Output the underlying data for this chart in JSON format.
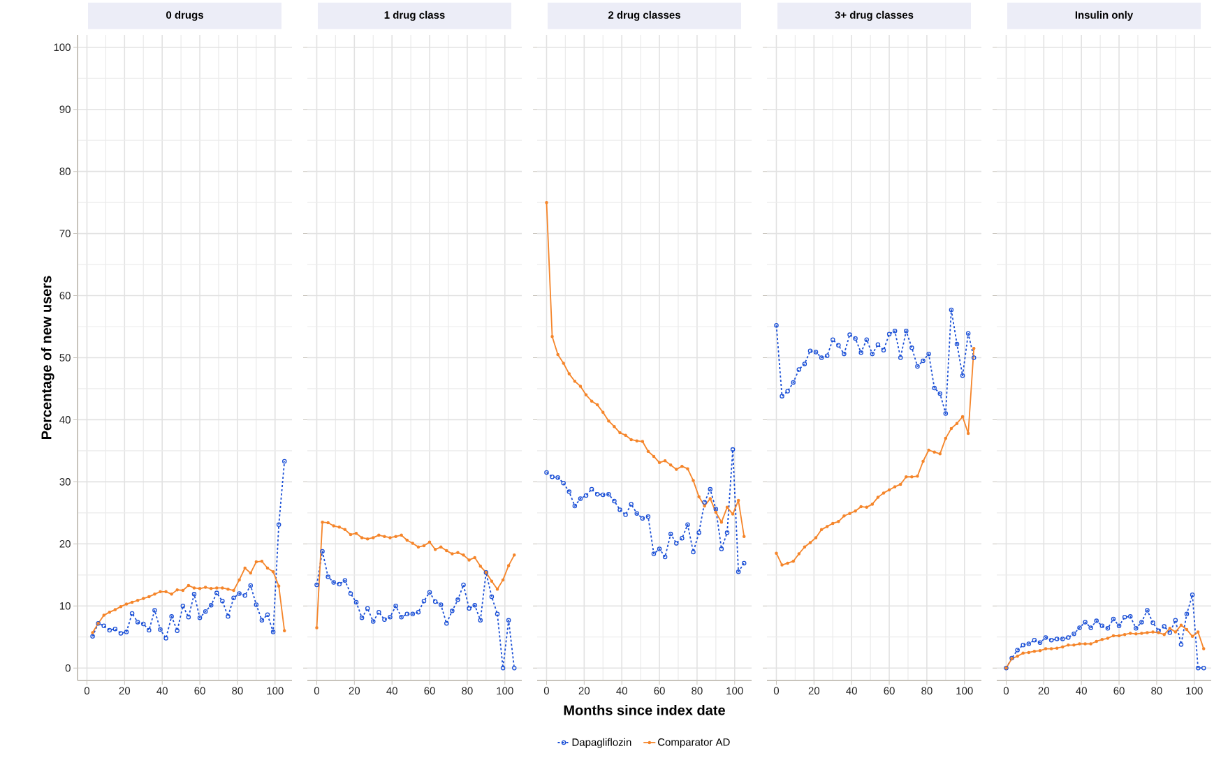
{
  "chart_data": [
    {
      "type": "line",
      "title": "0 drugs",
      "ylabel": "Percentage of new users",
      "x": [
        3,
        6,
        9,
        12,
        15,
        18,
        21,
        24,
        27,
        30,
        33,
        36,
        39,
        42,
        45,
        48,
        51,
        54,
        57,
        60,
        63,
        66,
        69,
        72,
        75,
        78,
        81,
        84,
        87,
        90,
        93,
        96,
        99,
        102,
        105
      ],
      "xlim": [
        -5,
        109
      ],
      "ylim": [
        -2,
        102
      ],
      "xticks": [
        0,
        20,
        40,
        60,
        80,
        100
      ],
      "yticks": [
        0,
        10,
        20,
        30,
        40,
        50,
        60,
        70,
        80,
        90,
        100
      ],
      "grid": true,
      "series": [
        {
          "color": "#1a4fd6",
          "marker": "circle",
          "line_style": "dashed",
          "values": [
            5.1,
            7.2,
            6.8,
            6.1,
            6.3,
            5.6,
            5.8,
            8.8,
            7.4,
            7.1,
            6.1,
            9.3,
            6.2,
            4.8,
            8.3,
            6.0,
            10.0,
            8.2,
            11.9,
            8.1,
            9.1,
            10.1,
            12.1,
            10.8,
            8.3,
            11.3,
            12.0,
            11.7,
            13.3,
            10.2,
            7.7,
            8.6,
            5.8,
            23.1,
            33.3
          ]
        },
        {
          "color": "#f5852a",
          "marker": "circle",
          "line_style": "solid",
          "values": [
            5.7,
            7.2,
            8.5,
            9.0,
            9.4,
            9.9,
            10.3,
            10.6,
            10.9,
            11.2,
            11.5,
            11.9,
            12.3,
            12.3,
            11.9,
            12.6,
            12.5,
            13.3,
            12.9,
            12.8,
            13.0,
            12.8,
            12.9,
            12.9,
            12.7,
            12.5,
            14.2,
            16.1,
            15.3,
            17.1,
            17.2,
            16.1,
            15.5,
            13.2,
            6.0
          ]
        }
      ]
    },
    {
      "type": "line",
      "title": "1 drug class",
      "tick_labels": "x",
      "x": [
        0,
        3,
        6,
        9,
        12,
        15,
        18,
        21,
        24,
        27,
        30,
        33,
        36,
        39,
        42,
        45,
        48,
        51,
        54,
        57,
        60,
        63,
        66,
        69,
        72,
        75,
        78,
        81,
        84,
        87,
        90,
        93,
        96,
        99,
        102,
        105
      ],
      "xlim": [
        -5,
        109
      ],
      "ylim": [
        -2,
        102
      ],
      "xticks": [
        0,
        20,
        40,
        60,
        80,
        100
      ],
      "yticks": [
        0,
        10,
        20,
        30,
        40,
        50,
        60,
        70,
        80,
        90,
        100
      ],
      "grid": true,
      "series": [
        {
          "color": "#1a4fd6",
          "marker": "circle",
          "line_style": "dashed",
          "values": [
            13.4,
            18.8,
            14.7,
            13.8,
            13.5,
            14.1,
            12.0,
            10.6,
            8.1,
            9.6,
            7.5,
            9.0,
            7.8,
            8.2,
            10.0,
            8.2,
            8.7,
            8.7,
            9.0,
            10.8,
            12.2,
            10.7,
            10.2,
            7.2,
            9.2,
            11.0,
            13.4,
            9.6,
            10.1,
            7.7,
            15.4,
            11.5,
            8.7,
            0.0,
            7.7,
            0.0
          ]
        },
        {
          "color": "#f5852a",
          "marker": "circle",
          "line_style": "solid",
          "values": [
            6.5,
            23.5,
            23.4,
            22.9,
            22.7,
            22.3,
            21.5,
            21.7,
            21.0,
            20.8,
            21.0,
            21.4,
            21.2,
            21.0,
            21.2,
            21.4,
            20.6,
            20.1,
            19.5,
            19.7,
            20.3,
            19.1,
            19.5,
            18.9,
            18.4,
            18.6,
            18.2,
            17.4,
            17.8,
            16.4,
            15.4,
            14.0,
            12.7,
            14.2,
            16.5,
            18.2
          ]
        }
      ]
    },
    {
      "type": "line",
      "title": "2 drug classes",
      "xlabel": "Months since index date",
      "tick_labels": "x",
      "legend": "bottom",
      "x": [
        0,
        3,
        6,
        9,
        12,
        15,
        18,
        21,
        24,
        27,
        30,
        33,
        36,
        39,
        42,
        45,
        48,
        51,
        54,
        57,
        60,
        63,
        66,
        69,
        72,
        75,
        78,
        81,
        84,
        87,
        90,
        93,
        96,
        99,
        102,
        105
      ],
      "xlim": [
        -5,
        109
      ],
      "ylim": [
        -2,
        102
      ],
      "xticks": [
        0,
        20,
        40,
        60,
        80,
        100
      ],
      "yticks": [
        0,
        10,
        20,
        30,
        40,
        50,
        60,
        70,
        80,
        90,
        100
      ],
      "grid": true,
      "series": [
        {
          "name": "Dapagliflozin",
          "color": "#1a4fd6",
          "marker": "circle",
          "line_style": "dashed",
          "values": [
            31.5,
            30.8,
            30.7,
            29.8,
            28.4,
            26.1,
            27.3,
            27.8,
            28.8,
            28.0,
            27.9,
            28.0,
            26.9,
            25.5,
            24.7,
            26.4,
            24.9,
            24.1,
            24.4,
            18.4,
            19.2,
            17.9,
            21.6,
            20.1,
            20.9,
            23.1,
            18.7,
            21.8,
            26.7,
            28.8,
            25.6,
            19.2,
            21.8,
            35.2,
            15.5,
            16.9
          ]
        },
        {
          "name": "Comparator AD",
          "color": "#f5852a",
          "marker": "circle",
          "line_style": "solid",
          "values": [
            75.0,
            53.4,
            50.5,
            49.1,
            47.4,
            46.2,
            45.4,
            44.0,
            43.0,
            42.4,
            41.2,
            39.8,
            38.9,
            37.9,
            37.5,
            36.8,
            36.6,
            36.5,
            34.9,
            34.1,
            33.1,
            33.4,
            32.7,
            32.0,
            32.5,
            32.1,
            30.2,
            27.6,
            26.1,
            27.3,
            25.1,
            23.5,
            25.9,
            24.8,
            27.0,
            21.2
          ]
        }
      ]
    },
    {
      "type": "line",
      "title": "3+ drug classes",
      "tick_labels": "x",
      "x": [
        0,
        3,
        6,
        9,
        12,
        15,
        18,
        21,
        24,
        27,
        30,
        33,
        36,
        39,
        42,
        45,
        48,
        51,
        54,
        57,
        60,
        63,
        66,
        69,
        72,
        75,
        78,
        81,
        84,
        87,
        90,
        93,
        96,
        99,
        102,
        105
      ],
      "xlim": [
        -5,
        109
      ],
      "ylim": [
        -2,
        102
      ],
      "xticks": [
        0,
        20,
        40,
        60,
        80,
        100
      ],
      "yticks": [
        0,
        10,
        20,
        30,
        40,
        50,
        60,
        70,
        80,
        90,
        100
      ],
      "grid": true,
      "series": [
        {
          "color": "#1a4fd6",
          "marker": "circle",
          "line_style": "dashed",
          "values": [
            55.2,
            43.8,
            44.6,
            46.0,
            48.1,
            49.0,
            51.1,
            50.9,
            50.0,
            50.3,
            52.9,
            52.0,
            50.6,
            53.7,
            53.1,
            50.8,
            52.9,
            50.6,
            52.1,
            51.2,
            53.8,
            54.3,
            50.0,
            54.3,
            51.6,
            48.6,
            49.5,
            50.6,
            45.1,
            44.2,
            41.0,
            57.7,
            52.2,
            47.1,
            53.9,
            50.0
          ]
        },
        {
          "color": "#f5852a",
          "marker": "circle",
          "line_style": "solid",
          "values": [
            18.5,
            16.6,
            16.9,
            17.2,
            18.4,
            19.5,
            20.2,
            21.0,
            22.3,
            22.8,
            23.3,
            23.6,
            24.5,
            24.9,
            25.3,
            26.0,
            25.9,
            26.4,
            27.5,
            28.2,
            28.7,
            29.2,
            29.6,
            30.8,
            30.8,
            30.9,
            33.3,
            35.1,
            34.8,
            34.5,
            37.0,
            38.6,
            39.4,
            40.5,
            37.8,
            51.5
          ]
        }
      ]
    },
    {
      "type": "line",
      "title": "Insulin only",
      "tick_labels": "x",
      "x": [
        0,
        3,
        6,
        9,
        12,
        15,
        18,
        21,
        24,
        27,
        30,
        33,
        36,
        39,
        42,
        45,
        48,
        51,
        54,
        57,
        60,
        63,
        66,
        69,
        72,
        75,
        78,
        81,
        84,
        87,
        90,
        93,
        96,
        99,
        102,
        105
      ],
      "xlim": [
        -5,
        109
      ],
      "ylim": [
        -2,
        102
      ],
      "xticks": [
        0,
        20,
        40,
        60,
        80,
        100
      ],
      "yticks": [
        0,
        10,
        20,
        30,
        40,
        50,
        60,
        70,
        80,
        90,
        100
      ],
      "grid": true,
      "series": [
        {
          "color": "#1a4fd6",
          "marker": "circle",
          "line_style": "dashed",
          "values": [
            0.0,
            1.6,
            2.9,
            3.7,
            3.9,
            4.5,
            4.1,
            4.9,
            4.5,
            4.7,
            4.7,
            4.9,
            5.5,
            6.5,
            7.4,
            6.5,
            7.6,
            6.8,
            6.4,
            7.9,
            6.8,
            8.2,
            8.3,
            6.4,
            7.4,
            9.3,
            7.3,
            6.0,
            6.7,
            5.7,
            7.7,
            3.8,
            8.7,
            11.8,
            0.0,
            0.0
          ]
        },
        {
          "color": "#f5852a",
          "marker": "circle",
          "line_style": "solid",
          "values": [
            0.0,
            1.5,
            1.9,
            2.4,
            2.5,
            2.7,
            2.8,
            3.1,
            3.1,
            3.2,
            3.4,
            3.7,
            3.7,
            3.9,
            3.9,
            3.9,
            4.3,
            4.6,
            4.8,
            5.2,
            5.2,
            5.4,
            5.6,
            5.5,
            5.6,
            5.7,
            5.8,
            5.7,
            5.4,
            6.4,
            5.8,
            6.9,
            6.2,
            5.1,
            5.8,
            3.1
          ]
        }
      ]
    }
  ]
}
